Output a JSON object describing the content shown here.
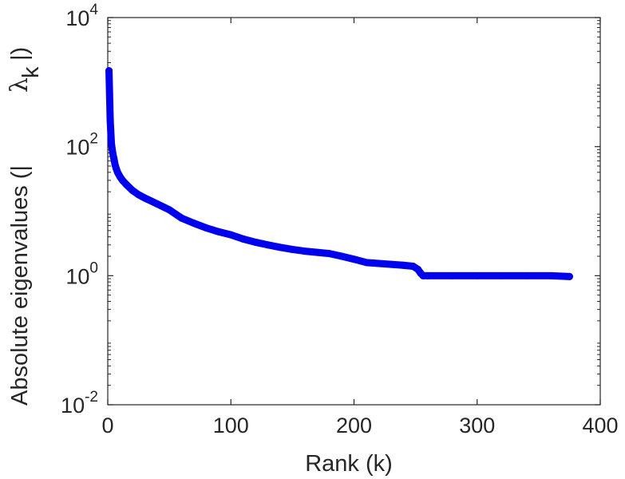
{
  "chart_data": {
    "type": "line",
    "xlabel": "Rank (k)",
    "ylabel": {
      "prefix": "Absolute eigenvalues (|",
      "symbol": "λ",
      "subscript": "k",
      "suffix": "|)"
    },
    "xlim": [
      0,
      400
    ],
    "ylim": [
      0.01,
      10000
    ],
    "yscale": "log",
    "grid": false,
    "legend": "none",
    "x_ticks": [
      "0",
      "100",
      "200",
      "300",
      "400"
    ],
    "y_ticks": [
      {
        "base": "10",
        "exp": "-2"
      },
      {
        "base": "10",
        "exp": "0"
      },
      {
        "base": "10",
        "exp": "2"
      },
      {
        "base": "10",
        "exp": "4"
      }
    ],
    "series_color": "#0000ee",
    "series": [
      {
        "x": [
          1,
          2,
          3,
          4,
          5,
          6,
          7,
          8,
          10,
          12,
          15,
          20,
          25,
          30,
          40,
          50,
          60,
          70,
          80,
          90,
          100,
          110,
          120,
          130,
          140,
          150,
          160,
          170,
          180,
          190,
          200,
          210,
          220,
          230,
          240,
          248,
          252,
          254,
          256,
          260,
          280,
          300,
          320,
          340,
          360,
          375
        ],
        "y": [
          1500,
          250,
          110,
          80,
          65,
          52,
          45,
          40,
          34,
          30,
          26,
          21,
          18,
          16,
          13,
          10.5,
          7.8,
          6.5,
          5.5,
          4.8,
          4.3,
          3.7,
          3.3,
          3.0,
          2.75,
          2.55,
          2.4,
          2.3,
          2.2,
          2.0,
          1.8,
          1.6,
          1.55,
          1.5,
          1.45,
          1.4,
          1.25,
          1.1,
          1.0,
          1.0,
          1.0,
          1.0,
          1.0,
          1.0,
          1.0,
          0.97
        ]
      }
    ]
  }
}
